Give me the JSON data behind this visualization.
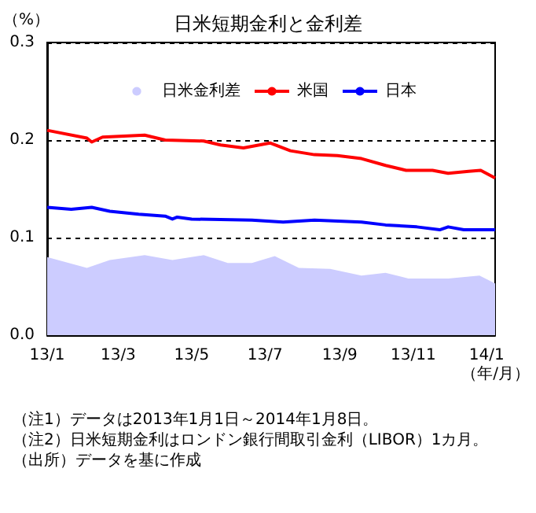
{
  "chart_data": {
    "type": "line",
    "title": "日米短期金利と金利差",
    "ylabel": "（%）",
    "xlabel": "（年/月）",
    "annotations": [
      "（注1）データは2013年1月1日～2014年1月8日。",
      "（注2）日米短期金利はロンドン銀行間取引金利（LIBOR）1カ月。",
      "（出所）データを基に作成"
    ],
    "xlim": [
      "2013-01-01",
      "2014-01-08"
    ],
    "xticks": [
      {
        "value": "2013-01-01",
        "label": "13/1"
      },
      {
        "value": "2013-03-01",
        "label": "13/3"
      },
      {
        "value": "2013-05-01",
        "label": "13/5"
      },
      {
        "value": "2013-07-01",
        "label": "13/7"
      },
      {
        "value": "2013-09-01",
        "label": "13/9"
      },
      {
        "value": "2013-11-01",
        "label": "13/11"
      },
      {
        "value": "2014-01-01",
        "label": "14/1"
      }
    ],
    "ylim": [
      0,
      0.3
    ],
    "yticks": [
      {
        "value": 0,
        "label": "0.0"
      },
      {
        "value": 0.1,
        "label": "0.1"
      },
      {
        "value": 0.2,
        "label": "0.2"
      },
      {
        "value": 0.3,
        "label": "0.3"
      }
    ],
    "grid": "y",
    "legend": "top",
    "marker": "none",
    "series": [
      {
        "name": "日米金利差",
        "type": "area",
        "color": "#ccccff",
        "x": [
          "2013-01-01",
          "2013-02-03",
          "2013-02-22",
          "2013-03-23",
          "2013-04-15",
          "2013-05-11",
          "2013-05-31",
          "2013-06-20",
          "2013-07-09",
          "2013-07-29",
          "2013-08-24",
          "2013-09-19",
          "2013-10-09",
          "2013-10-28",
          "2013-11-30",
          "2013-12-26",
          "2014-01-08"
        ],
        "values": [
          0.08,
          0.069,
          0.077,
          0.082,
          0.077,
          0.082,
          0.074,
          0.074,
          0.081,
          0.069,
          0.068,
          0.061,
          0.064,
          0.058,
          0.058,
          0.061,
          0.053
        ]
      },
      {
        "name": "米国",
        "color": "#ff0000",
        "x": [
          "2013-01-01",
          "2013-02-03",
          "2013-02-07",
          "2013-02-16",
          "2013-03-23",
          "2013-04-09",
          "2013-05-11",
          "2013-05-25",
          "2013-06-13",
          "2013-07-05",
          "2013-07-22",
          "2013-08-11",
          "2013-08-30",
          "2013-09-19",
          "2013-10-09",
          "2013-10-26",
          "2013-11-17",
          "2013-11-30",
          "2013-12-17",
          "2013-12-27",
          "2014-01-08"
        ],
        "values": [
          0.21,
          0.202,
          0.198,
          0.203,
          0.205,
          0.2,
          0.199,
          0.195,
          0.192,
          0.197,
          0.189,
          0.185,
          0.184,
          0.181,
          0.174,
          0.169,
          0.169,
          0.166,
          0.168,
          0.169,
          0.161
        ]
      },
      {
        "name": "日本",
        "color": "#0000ff",
        "x": [
          "2013-01-01",
          "2013-01-21",
          "2013-02-07",
          "2013-02-22",
          "2013-03-18",
          "2013-04-09",
          "2013-04-15",
          "2013-04-19",
          "2013-05-01",
          "2013-06-20",
          "2013-07-16",
          "2013-08-11",
          "2013-09-19",
          "2013-10-09",
          "2013-11-04",
          "2013-11-23",
          "2013-11-30",
          "2013-12-13",
          "2014-01-08"
        ],
        "values": [
          0.131,
          0.129,
          0.131,
          0.127,
          0.124,
          0.122,
          0.119,
          0.121,
          0.119,
          0.118,
          0.116,
          0.118,
          0.116,
          0.113,
          0.111,
          0.108,
          0.111,
          0.108,
          0.108
        ]
      }
    ]
  }
}
